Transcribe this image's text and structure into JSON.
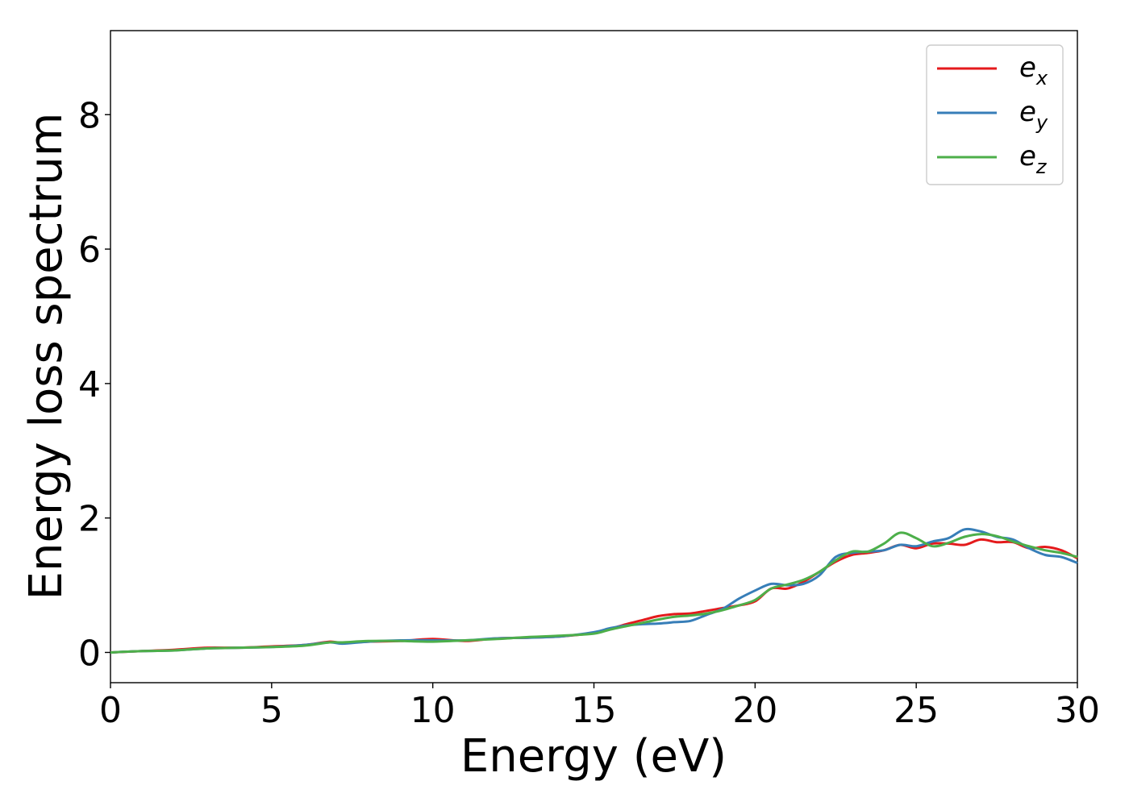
{
  "chart_data": {
    "type": "line",
    "xlabel": "Energy (eV)",
    "ylabel": "Energy loss spectrum",
    "xlim": [
      0,
      30
    ],
    "ylim": [
      -0.45,
      9.25
    ],
    "xticks": [
      0,
      5,
      10,
      15,
      20,
      25,
      30
    ],
    "yticks": [
      0,
      2,
      4,
      6,
      8
    ],
    "grid": false,
    "legend_position": "top-right",
    "series": [
      {
        "name": "e",
        "subscript": "x",
        "color": "#e41a1c",
        "x": [
          0,
          1,
          2,
          3,
          4,
          5,
          6,
          6.8,
          7.2,
          8,
          9,
          10,
          11,
          12,
          13,
          14,
          15,
          15.5,
          16,
          16.5,
          17,
          17.5,
          18,
          18.5,
          19,
          19.5,
          20,
          20.5,
          21,
          21.5,
          22,
          22.5,
          23,
          23.5,
          24,
          24.5,
          25,
          25.5,
          26,
          26.5,
          27,
          27.5,
          28,
          28.5,
          29,
          29.5,
          30
        ],
        "y": [
          0.0,
          0.02,
          0.04,
          0.07,
          0.07,
          0.09,
          0.11,
          0.16,
          0.14,
          0.16,
          0.17,
          0.2,
          0.17,
          0.21,
          0.22,
          0.24,
          0.29,
          0.35,
          0.42,
          0.48,
          0.54,
          0.57,
          0.58,
          0.62,
          0.66,
          0.7,
          0.76,
          0.95,
          0.95,
          1.05,
          1.2,
          1.35,
          1.45,
          1.48,
          1.52,
          1.6,
          1.55,
          1.62,
          1.62,
          1.6,
          1.68,
          1.64,
          1.64,
          1.55,
          1.57,
          1.52,
          1.4
        ]
      },
      {
        "name": "e",
        "subscript": "y",
        "color": "#377eb8",
        "x": [
          0,
          1,
          2,
          3,
          4,
          5,
          6,
          6.8,
          7.2,
          8,
          9,
          10,
          11,
          12,
          13,
          14,
          15,
          15.5,
          16,
          16.5,
          17,
          17.5,
          18,
          18.5,
          19,
          19.5,
          20,
          20.5,
          21,
          21.5,
          22,
          22.5,
          23,
          23.5,
          24,
          24.5,
          25,
          25.5,
          26,
          26.5,
          27,
          27.5,
          28,
          28.5,
          29,
          29.5,
          30
        ],
        "y": [
          0.0,
          0.02,
          0.03,
          0.06,
          0.07,
          0.08,
          0.11,
          0.15,
          0.13,
          0.16,
          0.18,
          0.18,
          0.18,
          0.21,
          0.22,
          0.24,
          0.3,
          0.36,
          0.4,
          0.42,
          0.43,
          0.45,
          0.47,
          0.56,
          0.65,
          0.8,
          0.92,
          1.02,
          1.0,
          1.02,
          1.15,
          1.42,
          1.48,
          1.5,
          1.52,
          1.6,
          1.58,
          1.65,
          1.7,
          1.83,
          1.8,
          1.72,
          1.68,
          1.55,
          1.45,
          1.42,
          1.33
        ]
      },
      {
        "name": "e",
        "subscript": "z",
        "color": "#4daf4a",
        "x": [
          0,
          1,
          2,
          3,
          4,
          5,
          6,
          6.8,
          7.2,
          8,
          9,
          10,
          11,
          12,
          13,
          14,
          15,
          15.5,
          16,
          16.5,
          17,
          17.5,
          18,
          18.5,
          19,
          19.5,
          20,
          20.5,
          21,
          21.5,
          22,
          22.5,
          23,
          23.5,
          24,
          24.5,
          25,
          25.5,
          26,
          26.5,
          27,
          27.5,
          28,
          28.5,
          29,
          29.5,
          30
        ],
        "y": [
          0.0,
          0.02,
          0.03,
          0.06,
          0.07,
          0.08,
          0.1,
          0.15,
          0.15,
          0.17,
          0.17,
          0.16,
          0.18,
          0.2,
          0.23,
          0.25,
          0.28,
          0.34,
          0.39,
          0.44,
          0.49,
          0.53,
          0.55,
          0.58,
          0.63,
          0.7,
          0.78,
          0.95,
          1.01,
          1.08,
          1.2,
          1.37,
          1.5,
          1.5,
          1.62,
          1.78,
          1.7,
          1.58,
          1.63,
          1.72,
          1.76,
          1.73,
          1.65,
          1.58,
          1.52,
          1.48,
          1.42
        ]
      }
    ]
  }
}
